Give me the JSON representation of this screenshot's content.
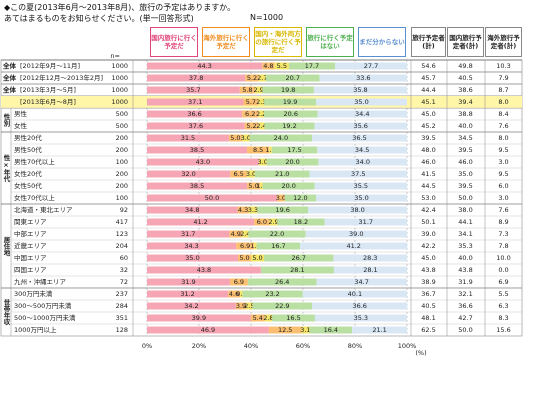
{
  "chart_data": {
    "type": "stacked-bar-horizontal",
    "title": [
      "◆この夏(2013年6月～2013年8月)、旅行の予定はありますか。",
      "あてはまるものをお知らせください。(単一回答形式)"
    ],
    "sample": "N=1000",
    "n_header": "n=",
    "categories": [
      "[2012年9月～11月]",
      "[2012年12月～2013年2月]",
      "[2013年3月～5月]",
      "[2013年6月～8月]",
      "男性",
      "女性",
      "男性20代",
      "男性50代",
      "男性70代以上",
      "女性20代",
      "女性50代",
      "女性70代以上",
      "北海道・東北エリア",
      "関東エリア",
      "中部エリア",
      "近畿エリア",
      "中国エリア",
      "四国エリア",
      "九州・沖縄エリア",
      "300万円未満",
      "300～500万円未満",
      "500～1000万円未満",
      "1000万円以上"
    ],
    "row_groups": [
      "全体",
      "全体",
      "全体",
      "全体",
      "性別",
      null,
      "性×年代",
      null,
      null,
      null,
      null,
      null,
      "居住地",
      null,
      null,
      null,
      null,
      null,
      null,
      "世帯年収",
      null,
      null,
      null
    ],
    "n": [
      1000,
      1000,
      1000,
      1000,
      500,
      500,
      200,
      200,
      100,
      200,
      200,
      100,
      92,
      417,
      123,
      204,
      60,
      32,
      72,
      237,
      284,
      351,
      128
    ],
    "series": [
      {
        "name": "国内旅行に行く予定だ",
        "color": "#f6a5b5",
        "border": "#e0457b",
        "values": [
          44.3,
          37.8,
          35.7,
          37.1,
          36.6,
          37.6,
          31.5,
          38.5,
          43.0,
          32.0,
          38.5,
          50.0,
          34.8,
          41.2,
          31.7,
          34.3,
          35.0,
          43.8,
          31.9,
          31.2,
          34.2,
          39.9,
          46.9
        ],
        "value_labels": [
          "44.3",
          "37.8",
          "35.7",
          "37.1",
          "36.6",
          "37.6",
          "31.5",
          "38.5",
          "43.0",
          "32.0",
          "38.5",
          "50.0",
          "34.8",
          "41.2",
          "31.7",
          "34.3",
          "35.0",
          "43.8",
          "31.9",
          "31.2",
          "34.2",
          "39.9",
          "46.9"
        ]
      },
      {
        "name": "海外旅行に行く予定だ",
        "color": "#fbbf72",
        "border": "#f08c1e",
        "values": [
          4.8,
          5.2,
          5.8,
          5.7,
          6.2,
          5.2,
          5.0,
          8.5,
          0,
          6.5,
          5.0,
          3.0,
          4.3,
          6.0,
          4.9,
          6.9,
          5.0,
          0,
          6.9,
          4.6,
          3.9,
          5.4,
          12.5
        ],
        "value_labels": [
          "4.8",
          "5.2",
          "5.8",
          "5.7",
          "6.2",
          "5.2",
          "5.0",
          "8.5",
          null,
          "6.5",
          "5.0",
          "3.0",
          "4.3",
          "6.0",
          "4.9",
          "6.9",
          "5.0",
          null,
          "6.9",
          "4.6",
          "3.9",
          "5.4",
          "12.5"
        ]
      },
      {
        "name": "国内・海外両方の旅行に行く予定だ",
        "color": "#f3e46a",
        "border": "#d8b800",
        "values": [
          5.5,
          2.7,
          2.9,
          2.3,
          2.2,
          2.4,
          3.0,
          1.0,
          3.0,
          3.0,
          1.0,
          0,
          3.3,
          2.9,
          2.4,
          1.0,
          5.0,
          0,
          0,
          0.9,
          2.5,
          2.8,
          3.1
        ],
        "value_labels": [
          "5.5",
          "2.7",
          "2.9",
          "2.3",
          "2.2",
          "2.4",
          "3.0",
          "1.0",
          "3.0",
          "3.0",
          "1.0",
          null,
          "3.3",
          "2.9",
          "2.4",
          "1.0",
          "5.0",
          null,
          null,
          "0.9",
          "2.5",
          "2.8",
          "3.1"
        ]
      },
      {
        "name": "旅行に行く予定はない",
        "color": "#b9e0a2",
        "border": "#4caf50",
        "values": [
          17.7,
          20.7,
          19.8,
          19.9,
          20.6,
          19.2,
          24.0,
          17.5,
          20.0,
          21.0,
          20.0,
          12.0,
          19.6,
          18.2,
          22.0,
          16.7,
          26.7,
          28.1,
          26.4,
          23.2,
          22.9,
          16.5,
          16.4
        ],
        "value_labels": [
          "17.7",
          "20.7",
          "19.8",
          "19.9",
          "20.6",
          "19.2",
          "24.0",
          "17.5",
          "20.0",
          "21.0",
          "20.0",
          "12.0",
          "19.6",
          "18.2",
          "22.0",
          "16.7",
          "26.7",
          "28.1",
          "26.4",
          "23.2",
          "22.9",
          "16.5",
          "16.4"
        ]
      },
      {
        "name": "まだ分からない",
        "color": "#d9e7f5",
        "border": "#5b8fd0",
        "values": [
          27.7,
          33.6,
          35.8,
          35.0,
          34.4,
          35.6,
          36.5,
          34.5,
          34.0,
          37.5,
          35.5,
          35.0,
          38.0,
          31.7,
          39.0,
          41.2,
          28.3,
          28.1,
          34.7,
          40.1,
          36.6,
          35.3,
          21.1
        ],
        "value_labels": [
          "27.7",
          "33.6",
          "35.8",
          "35.0",
          "34.4",
          "35.6",
          "36.5",
          "34.5",
          "34.0",
          "37.5",
          "35.5",
          "35.0",
          "38.0",
          "31.7",
          "39.0",
          "41.2",
          "28.3",
          "28.1",
          "34.7",
          "40.1",
          "36.6",
          "35.3",
          "21.1"
        ]
      }
    ],
    "xlim": [
      0,
      100
    ],
    "xticks": [
      {
        "value": 0,
        "label": "0%"
      },
      {
        "value": 20,
        "label": "20%"
      },
      {
        "value": 40,
        "label": "40%"
      },
      {
        "value": 60,
        "label": "60%"
      },
      {
        "value": 80,
        "label": "80%"
      },
      {
        "value": 100,
        "label": "100%"
      }
    ],
    "x_unit": "(%)",
    "grid": true,
    "totals": {
      "columns": [
        "旅行予定者(計)",
        "国内旅行予定者(計)",
        "海外旅行予定者(計)"
      ],
      "rows": [
        [
          "54.6",
          "49.8",
          "10.3"
        ],
        [
          "45.7",
          "40.5",
          "7.9"
        ],
        [
          "44.4",
          "38.6",
          "8.7"
        ],
        [
          "45.1",
          "39.4",
          "8.0"
        ],
        [
          "45.0",
          "38.8",
          "8.4"
        ],
        [
          "45.2",
          "40.0",
          "7.6"
        ],
        [
          "39.5",
          "34.5",
          "8.0"
        ],
        [
          "48.0",
          "39.5",
          "9.5"
        ],
        [
          "46.0",
          "46.0",
          "3.0"
        ],
        [
          "41.5",
          "35.0",
          "9.5"
        ],
        [
          "44.5",
          "39.5",
          "6.0"
        ],
        [
          "53.0",
          "50.0",
          "3.0"
        ],
        [
          "42.4",
          "38.0",
          "7.6"
        ],
        [
          "50.1",
          "44.1",
          "8.9"
        ],
        [
          "39.0",
          "34.1",
          "7.3"
        ],
        [
          "42.2",
          "35.3",
          "7.8"
        ],
        [
          "45.0",
          "40.0",
          "10.0"
        ],
        [
          "43.8",
          "43.8",
          "0.0"
        ],
        [
          "38.9",
          "31.9",
          "6.9"
        ],
        [
          "36.7",
          "32.1",
          "5.5"
        ],
        [
          "40.5",
          "36.6",
          "6.3"
        ],
        [
          "48.1",
          "42.7",
          "8.3"
        ],
        [
          "62.5",
          "50.0",
          "15.6"
        ]
      ]
    }
  }
}
